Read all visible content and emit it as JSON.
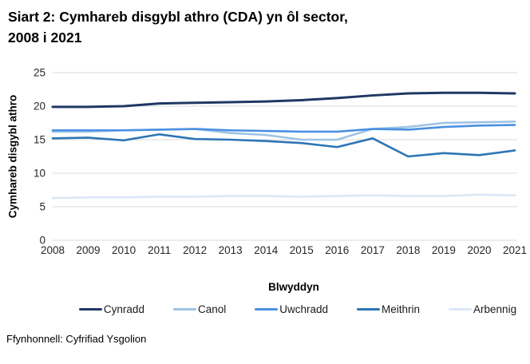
{
  "title": {
    "line1": "Siart 2: Cymhareb disgybl athro (CDA) yn ôl sector,",
    "line2": "2008 i 2021"
  },
  "source": "Ffynhonnell: Cyfrifiad Ysgolion",
  "chart_data": {
    "type": "line",
    "title": "Siart 2: Cymhareb disgybl athro (CDA) yn ôl sector, 2008 i 2021",
    "xlabel": "Blwyddyn",
    "ylabel": "Cymhareb disgybl athro",
    "x": [
      2008,
      2009,
      2010,
      2011,
      2012,
      2013,
      2014,
      2015,
      2016,
      2017,
      2018,
      2019,
      2020,
      2021
    ],
    "ylim": [
      0,
      25
    ],
    "yticks": [
      0,
      5,
      10,
      15,
      20,
      25
    ],
    "grid": "horizontal",
    "grid_color": "#D9D9D9",
    "legend_position": "bottom",
    "series": [
      {
        "name": "Cynradd",
        "color": "#1F3864",
        "values": [
          19.9,
          19.9,
          20.0,
          20.4,
          20.5,
          20.6,
          20.7,
          20.9,
          21.2,
          21.6,
          21.9,
          22.0,
          22.0,
          21.9
        ]
      },
      {
        "name": "Canol",
        "color": "#9DC3E6",
        "values": [
          16.2,
          16.2,
          16.4,
          16.5,
          16.6,
          16.0,
          15.7,
          15.0,
          15.0,
          16.6,
          16.9,
          17.5,
          17.6,
          17.7
        ]
      },
      {
        "name": "Uwchradd",
        "color": "#4A90E2",
        "values": [
          16.4,
          16.4,
          16.4,
          16.5,
          16.6,
          16.4,
          16.3,
          16.2,
          16.2,
          16.6,
          16.5,
          16.9,
          17.1,
          17.2
        ]
      },
      {
        "name": "Meithrin",
        "color": "#2E75B6",
        "values": [
          15.2,
          15.3,
          14.9,
          15.8,
          15.1,
          15.0,
          14.8,
          14.5,
          13.9,
          15.2,
          12.5,
          13.0,
          12.7,
          13.4
        ]
      },
      {
        "name": "Arbennig",
        "color": "#DAE8F6",
        "values": [
          6.3,
          6.4,
          6.4,
          6.5,
          6.5,
          6.6,
          6.6,
          6.5,
          6.6,
          6.7,
          6.6,
          6.6,
          6.8,
          6.7
        ]
      }
    ]
  }
}
